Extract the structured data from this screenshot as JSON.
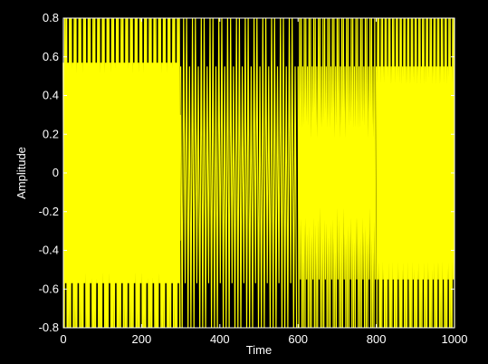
{
  "chart_data": {
    "type": "line",
    "title": "",
    "xlabel": "Time",
    "ylabel": "Amplitude",
    "xlim": [
      0,
      1000
    ],
    "ylim": [
      -0.8,
      0.8
    ],
    "xticks": [
      0,
      200,
      400,
      600,
      800,
      1000
    ],
    "xtick_labels": [
      "0",
      "200",
      "400",
      "600",
      "800",
      "1000"
    ],
    "yticks": [
      -0.8,
      -0.6,
      -0.4,
      -0.2,
      0,
      0.2,
      0.4,
      0.6,
      0.8
    ],
    "ytick_labels": [
      "-0.8",
      "-0.6",
      "-0.4",
      "-0.2",
      "0",
      "0.2",
      "0.4",
      "0.6",
      "0.8"
    ],
    "grid": false,
    "background_color": "#000000",
    "axes_color": "#ffffff",
    "series": [
      {
        "color": "#ffff00",
        "segments": [
          {
            "x_range": [
              0,
              300
            ],
            "density": "dense",
            "outer_envelope": [
              -0.8,
              0.8
            ],
            "mid_levels": [
              -0.57,
              0.57
            ],
            "inner_levels": [
              -0.35,
              0.3
            ]
          },
          {
            "x_range": [
              300,
              600
            ],
            "density": "medium",
            "outer_envelope": [
              -0.8,
              0.8
            ],
            "mid_levels": [
              -0.57,
              0.55
            ],
            "inner_levels": [
              -0.25,
              0.0
            ]
          },
          {
            "x_range": [
              600,
              800
            ],
            "density": "high",
            "outer_envelope": [
              -0.8,
              0.8
            ],
            "mid_levels": [
              -0.55,
              0.55
            ],
            "inner_levels": [
              -0.25,
              0.0
            ]
          },
          {
            "x_range": [
              800,
              1000
            ],
            "density": "very high",
            "outer_envelope": [
              -0.8,
              0.8
            ],
            "mid_levels": [
              -0.55,
              0.55
            ],
            "inner_levels": [
              -0.3,
              0.0
            ]
          }
        ]
      }
    ]
  }
}
